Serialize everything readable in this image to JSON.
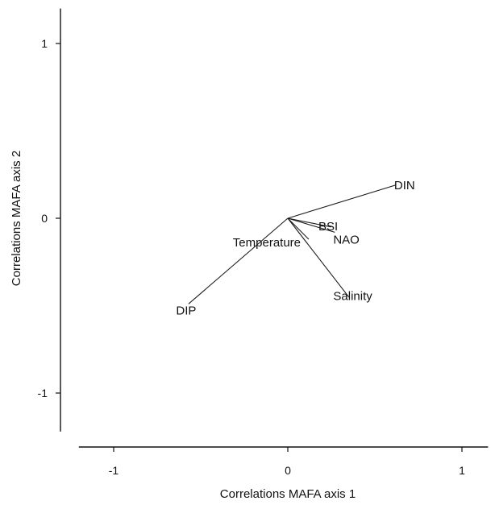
{
  "chart_data": {
    "type": "scatter",
    "title": "",
    "xlabel": "Correlations MAFA axis 1",
    "ylabel": "Correlations MAFA axis 2",
    "xlim": [
      -1.2,
      1.15
    ],
    "ylim": [
      -1.22,
      1.2
    ],
    "xticks": [
      -1,
      0,
      1
    ],
    "yticks": [
      -1,
      0,
      1
    ],
    "xtick_labels": [
      "-1",
      "0",
      "1"
    ],
    "ytick_labels": [
      "-1",
      "0",
      "1"
    ],
    "grid": false,
    "series": [
      {
        "points": [
          {
            "label": "DIN",
            "x": 0.62,
            "y": 0.19
          },
          {
            "label": "BSI",
            "x": 0.25,
            "y": -0.05
          },
          {
            "label": "NAO",
            "x": 0.27,
            "y": -0.08
          },
          {
            "label": "Temperature",
            "x": 0.12,
            "y": -0.12
          },
          {
            "label": "Salinity",
            "x": 0.35,
            "y": -0.45
          },
          {
            "label": "DIP",
            "x": -0.57,
            "y": -0.49
          }
        ]
      }
    ]
  }
}
